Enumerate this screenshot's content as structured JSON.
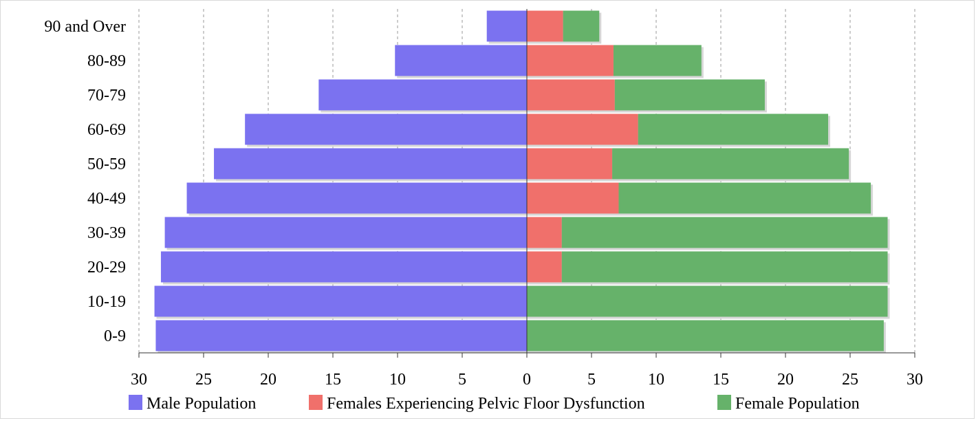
{
  "chart_data": {
    "type": "bar",
    "orientation": "horizontal",
    "layout": "population-pyramid",
    "categories": [
      "90 and Over",
      "80-89",
      "70-79",
      "60-69",
      "50-59",
      "40-49",
      "30-39",
      "20-29",
      "10-19",
      "0-9"
    ],
    "series": [
      {
        "name": "Male Population",
        "side": "left",
        "color": "#7b72f0",
        "values": [
          3.1,
          10.2,
          16.1,
          21.8,
          24.2,
          26.3,
          28.0,
          28.3,
          28.8,
          28.7
        ]
      },
      {
        "name": "Females Experiencing Pelvic Floor Dysfunction",
        "side": "right",
        "color": "#f0706b",
        "values": [
          2.8,
          6.7,
          6.8,
          8.6,
          6.6,
          7.1,
          2.7,
          2.7,
          0,
          0
        ]
      },
      {
        "name": "Female Population",
        "side": "right",
        "color": "#66b26a",
        "values": [
          2.8,
          6.8,
          11.6,
          14.7,
          18.3,
          19.5,
          25.2,
          25.2,
          27.9,
          27.6
        ]
      }
    ],
    "xlim": [
      -30,
      30
    ],
    "x_ticks": [
      -30,
      -25,
      -20,
      -15,
      -10,
      -5,
      0,
      5,
      10,
      15,
      20,
      25,
      30
    ],
    "x_tick_labels": [
      "30",
      "25",
      "20",
      "15",
      "10",
      "5",
      "0",
      "5",
      "10",
      "15",
      "20",
      "25",
      "30"
    ],
    "grid": "vertical-dashed",
    "legend_position": "bottom",
    "title": "",
    "xlabel": "",
    "ylabel": ""
  }
}
